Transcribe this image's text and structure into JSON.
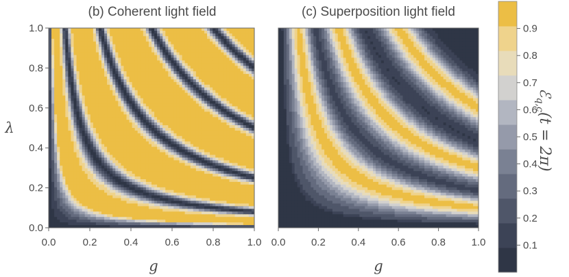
{
  "chart_data": [
    {
      "type": "heatmap",
      "title": "(b) Coherent light field",
      "xlabel": "g",
      "ylabel": "λ",
      "xlim": [
        0,
        1
      ],
      "ylim": [
        0,
        1
      ],
      "xticks": [
        "0.0",
        "0.2",
        "0.4",
        "0.6",
        "0.8",
        "1.0"
      ],
      "yticks": [
        "0.0",
        "0.2",
        "0.4",
        "0.6",
        "0.8",
        "1.0"
      ],
      "xtick_values": [
        0,
        0.2,
        0.4,
        0.6,
        0.8,
        1.0
      ],
      "ytick_values": [
        0,
        0.2,
        0.4,
        0.6,
        0.8,
        1.0
      ],
      "dark_band_levels_glambda": [
        0.08,
        0.25,
        0.5,
        0.8
      ],
      "low_region_threshold_glambda": 0.02
    },
    {
      "type": "heatmap",
      "title": "(c) Superposition light field",
      "xlabel": "g",
      "ylabel": "",
      "xlim": [
        0,
        1
      ],
      "ylim": [
        0,
        1
      ],
      "xticks": [
        "0.0",
        "0.2",
        "0.4",
        "0.6",
        "0.8",
        "1.0"
      ],
      "xtick_values": [
        0,
        0.2,
        0.4,
        0.6,
        0.8,
        1.0
      ],
      "bright_band_levels_glambda": [
        0.1,
        0.3,
        0.6
      ],
      "low_region_threshold_glambda": 0.02
    },
    {
      "type": "colorbar",
      "label": "ℰq,c(t = 2π)",
      "label_main": "ℰ",
      "label_sub": "q,c",
      "label_args": "(t = 2π)",
      "range": [
        0,
        1
      ],
      "ticks": [
        "0.1",
        "0.2",
        "0.3",
        "0.4",
        "0.5",
        "0.6",
        "0.7",
        "0.8",
        "0.9"
      ],
      "tick_values": [
        0.1,
        0.2,
        0.3,
        0.4,
        0.5,
        0.6,
        0.7,
        0.8,
        0.9
      ],
      "levels": 10,
      "colors": [
        "#2f3646",
        "#3c4356",
        "#4f5669",
        "#646b7e",
        "#7a8193",
        "#959aaa",
        "#b2b6c1",
        "#d2d1cf",
        "#e8dcba",
        "#efd38c",
        "#ecbe45"
      ]
    }
  ]
}
